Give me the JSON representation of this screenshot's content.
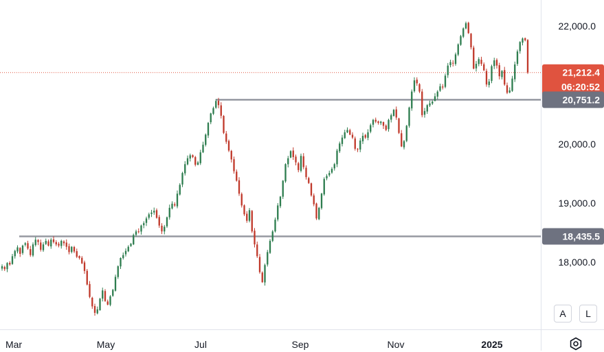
{
  "chart_data": {
    "type": "candlestick",
    "title": "",
    "xlabel": "",
    "ylabel": "",
    "x_ticks": [
      "Mar",
      "May",
      "Jul",
      "Sep",
      "Nov",
      "2025"
    ],
    "y_ticks": [
      "22,000.0",
      "20,000.0",
      "19,000.0",
      "18,000.0"
    ],
    "ylim": [
      17000,
      22300
    ],
    "grid": false,
    "price_line_value": 21212.4,
    "current_price_label": "21,212.4",
    "countdown_label": "06:20:52",
    "horizontal_levels": [
      {
        "value": 20751.2,
        "label": "20,751.2"
      },
      {
        "value": 18435.5,
        "label": "18,435.5"
      }
    ],
    "colors": {
      "up": "#2e7d4f",
      "down": "#c0392b",
      "level": "#9598a1",
      "price_badge": "#e0533f",
      "level_badge": "#6e7280",
      "price_line": "#e0533f"
    },
    "candles_close": [
      17930,
      17880,
      17985,
      17960,
      18100,
      18190,
      18250,
      18140,
      18280,
      18320,
      18230,
      18120,
      18300,
      18380,
      18340,
      18210,
      18300,
      18360,
      18280,
      18380,
      18340,
      18300,
      18280,
      18360,
      18320,
      18260,
      18170,
      18260,
      18180,
      18090,
      18070,
      17980,
      17850,
      17620,
      17410,
      17250,
      17140,
      17200,
      17380,
      17520,
      17340,
      17280,
      17420,
      17530,
      17750,
      17930,
      18070,
      18120,
      18190,
      18260,
      18310,
      18460,
      18520,
      18520,
      18620,
      18660,
      18740,
      18810,
      18840,
      18870,
      18750,
      18620,
      18520,
      18600,
      18760,
      18920,
      18990,
      18960,
      19160,
      19310,
      19510,
      19660,
      19760,
      19810,
      19780,
      19650,
      19690,
      19860,
      19990,
      20160,
      20360,
      20520,
      20610,
      20730,
      20660,
      20480,
      20190,
      20040,
      19890,
      19740,
      19540,
      19380,
      19160,
      18960,
      18810,
      18700,
      18880,
      18520,
      18300,
      18100,
      17830,
      17660,
      17950,
      18170,
      18360,
      18520,
      18720,
      18960,
      19110,
      19380,
      19660,
      19760,
      19880,
      19780,
      19690,
      19560,
      19800,
      19610,
      19440,
      19340,
      19130,
      18980,
      18740,
      18920,
      19160,
      19410,
      19460,
      19510,
      19580,
      19660,
      19890,
      20010,
      20110,
      20200,
      20240,
      20160,
      20110,
      19920,
      19910,
      20060,
      20140,
      20110,
      20200,
      20320,
      20410,
      20380,
      20360,
      20380,
      20310,
      20240,
      20410,
      20490,
      20580,
      20450,
      20190,
      19960,
      20050,
      20310,
      20620,
      20890,
      21080,
      21030,
      20890,
      20490,
      20560,
      20660,
      20690,
      20720,
      20810,
      20890,
      20980,
      20960,
      21160,
      21330,
      21390,
      21370,
      21520,
      21690,
      21830,
      21960,
      22050,
      21880,
      21640,
      21280,
      21360,
      21440,
      21360,
      21250,
      21010,
      21060,
      21320,
      21420,
      21330,
      21150,
      21240,
      21010,
      20870,
      20910,
      21110,
      21350,
      21570,
      21730,
      21790,
      21760,
      21212.4
    ]
  },
  "scale_buttons": {
    "auto": "A",
    "log": "L"
  },
  "icons": {
    "settings": "settings-gear-icon"
  }
}
